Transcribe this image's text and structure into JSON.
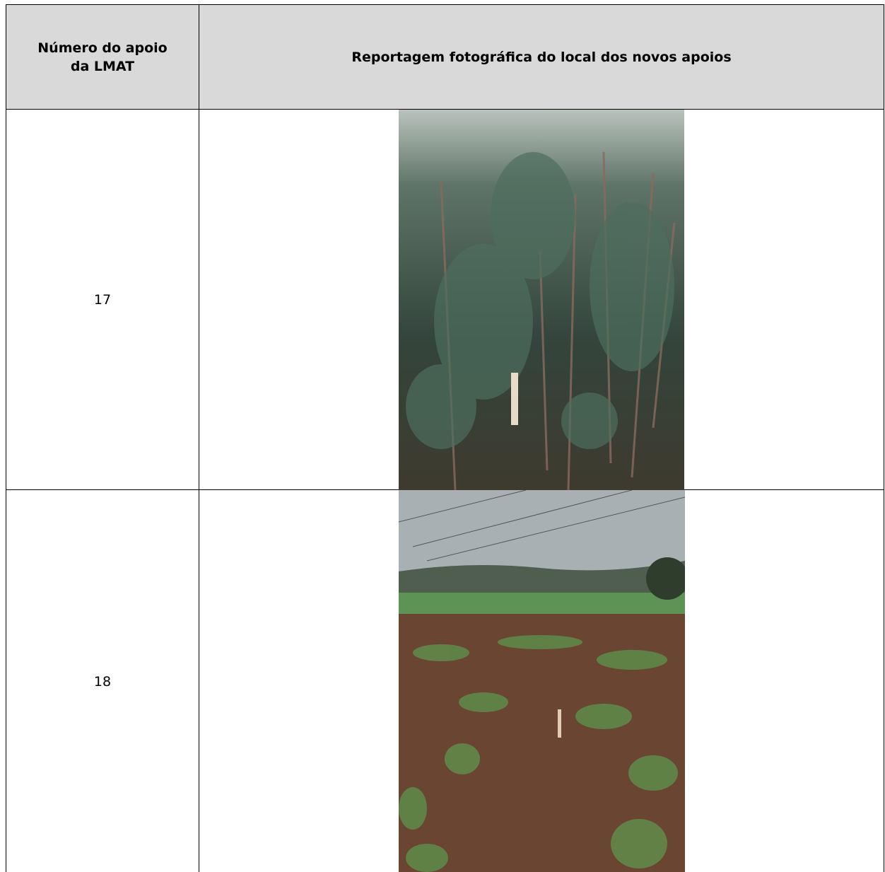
{
  "table": {
    "header": [
      "Número do apoio da LMAT",
      "Reportagem fotográfica do local dos novos apoios"
    ],
    "rows": [
      [
        "17"
      ],
      [
        "18"
      ]
    ]
  }
}
